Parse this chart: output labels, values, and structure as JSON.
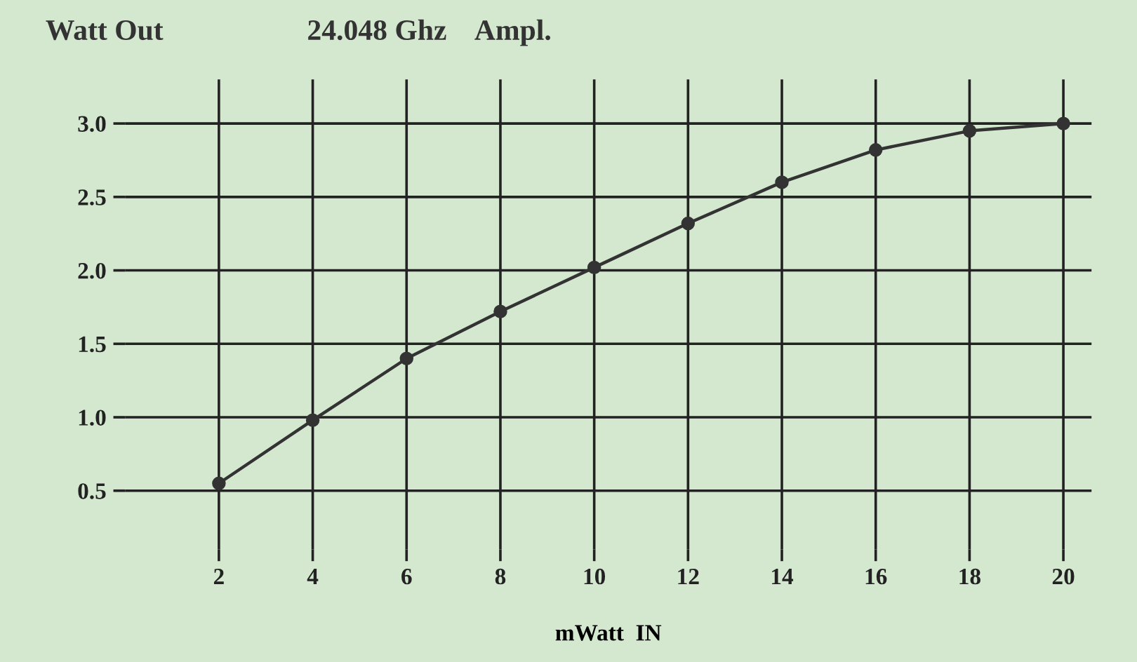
{
  "chart_data": {
    "type": "line",
    "title": "24.048 Ghz    Ampl.",
    "ylabel": "Watt Out",
    "xlabel": "mWatt  IN",
    "x": [
      2,
      4,
      6,
      8,
      10,
      12,
      14,
      16,
      18,
      20
    ],
    "series": [
      {
        "color": "#333333",
        "values": [
          0.55,
          0.98,
          1.4,
          1.72,
          2.02,
          2.32,
          2.6,
          2.82,
          2.95,
          3.0
        ]
      }
    ],
    "xlim": [
      0,
      20.6
    ],
    "ylim": [
      0.1,
      3.3
    ],
    "xticks": [
      2,
      4,
      6,
      8,
      10,
      12,
      14,
      16,
      18,
      20
    ],
    "yticks": [
      0.5,
      {
        "value": 1,
        "label": "1.0"
      },
      1.5,
      {
        "value": 2,
        "label": "2.0"
      },
      2.5,
      {
        "value": 3,
        "label": "3.0"
      }
    ],
    "grid": true,
    "marker": "circle",
    "line_style": "solid"
  }
}
